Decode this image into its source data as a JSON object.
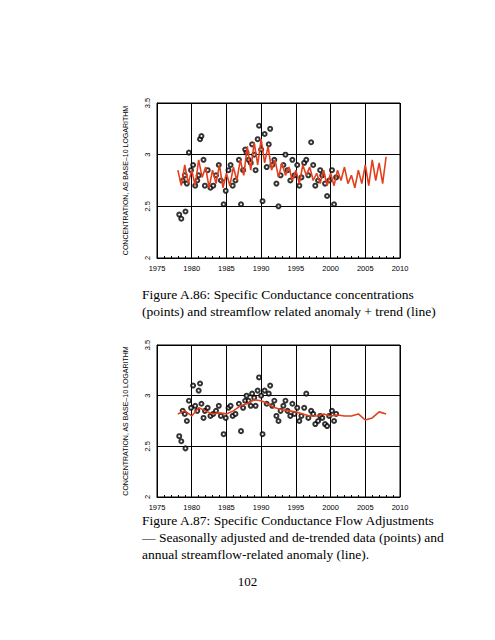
{
  "chart_data": [
    {
      "type": "scatter",
      "caption": "Figure A.86: Specific Conductance concentrations (points) and streamflow related anomaly + trend (line)",
      "y_label": "CONCENTRATION, AS BASE–10 LOGARITHM",
      "xlim": [
        1975,
        2010
      ],
      "xticks": [
        1975,
        1980,
        1985,
        1990,
        1995,
        2000,
        2005,
        2010
      ],
      "ylim": [
        2,
        3.5
      ],
      "yticks": [
        2,
        2.5,
        3,
        3.5
      ],
      "grid": true,
      "series": [
        {
          "type": "scatter",
          "marker": "circle-open",
          "color": "#000000",
          "x": [
            1978.2,
            1978.5,
            1978.7,
            1979.0,
            1979.1,
            1979.3,
            1979.6,
            1979.9,
            1980.2,
            1980.5,
            1980.8,
            1981.0,
            1981.2,
            1981.4,
            1981.7,
            1981.9,
            1982.3,
            1982.7,
            1983.1,
            1983.5,
            1983.9,
            1984.2,
            1984.6,
            1984.9,
            1985.3,
            1985.6,
            1985.9,
            1986.3,
            1986.8,
            1987.1,
            1987.4,
            1987.7,
            1987.9,
            1988.2,
            1988.5,
            1988.7,
            1989.0,
            1989.2,
            1989.5,
            1989.7,
            1990.0,
            1990.2,
            1990.5,
            1990.8,
            1991.1,
            1991.3,
            1991.6,
            1991.9,
            1992.2,
            1992.5,
            1992.8,
            1993.2,
            1993.5,
            1993.8,
            1994.2,
            1994.5,
            1994.8,
            1995.2,
            1995.5,
            1995.8,
            1996.2,
            1996.5,
            1996.8,
            1997.2,
            1997.5,
            1997.8,
            1998.2,
            1998.5,
            1998.8,
            1999.2,
            1999.5,
            1999.8,
            2000.2,
            2000.5,
            2000.8
          ],
          "values": [
            2.42,
            2.38,
            2.75,
            2.8,
            2.45,
            2.72,
            3.02,
            2.85,
            2.9,
            2.7,
            2.75,
            2.8,
            3.15,
            3.18,
            2.95,
            2.7,
            2.85,
            2.68,
            2.7,
            2.8,
            2.9,
            2.75,
            2.52,
            2.65,
            2.85,
            2.9,
            2.7,
            2.75,
            2.95,
            2.52,
            2.85,
            3.05,
            3.02,
            2.95,
            2.92,
            3.1,
            3.0,
            2.85,
            3.15,
            3.28,
            3.05,
            2.55,
            3.2,
            2.88,
            3.1,
            3.25,
            2.9,
            2.95,
            2.72,
            2.5,
            2.8,
            2.9,
            3.0,
            2.85,
            2.75,
            2.95,
            2.8,
            2.9,
            2.7,
            2.78,
            2.92,
            2.95,
            2.8,
            3.12,
            2.9,
            2.7,
            2.75,
            2.85,
            2.8,
            2.72,
            2.6,
            2.75,
            2.85,
            2.52,
            2.78
          ]
        },
        {
          "type": "line",
          "line_style": "solid",
          "color": "#e2401c",
          "x": [
            1978.0,
            1978.5,
            1979.0,
            1979.5,
            1980.0,
            1980.5,
            1981.0,
            1981.5,
            1982.0,
            1982.5,
            1983.0,
            1983.5,
            1984.0,
            1984.5,
            1985.0,
            1985.5,
            1986.0,
            1986.5,
            1987.0,
            1987.5,
            1988.0,
            1988.5,
            1989.0,
            1989.5,
            1990.0,
            1990.5,
            1991.0,
            1991.5,
            1992.0,
            1992.5,
            1993.0,
            1993.5,
            1994.0,
            1994.5,
            1995.0,
            1995.5,
            1996.0,
            1996.5,
            1997.0,
            1997.5,
            1998.0,
            1998.5,
            1999.0,
            1999.5,
            2000.0,
            2000.5,
            2001.0,
            2001.5,
            2002.0,
            2002.5,
            2003.0,
            2003.5,
            2004.0,
            2004.5,
            2005.0,
            2005.5,
            2006.0,
            2006.5,
            2007.0,
            2007.5,
            2008.0
          ],
          "values": [
            2.85,
            2.7,
            2.9,
            2.72,
            2.85,
            2.7,
            2.95,
            2.78,
            2.88,
            2.68,
            2.85,
            2.72,
            2.9,
            2.68,
            2.82,
            2.7,
            2.88,
            2.75,
            2.95,
            2.8,
            3.08,
            2.85,
            3.12,
            2.9,
            3.15,
            2.92,
            3.08,
            2.85,
            2.95,
            2.78,
            2.92,
            2.8,
            2.88,
            2.75,
            2.85,
            2.72,
            2.9,
            2.8,
            2.88,
            2.75,
            2.82,
            2.72,
            2.85,
            2.7,
            2.82,
            2.7,
            2.85,
            2.75,
            2.88,
            2.72,
            2.8,
            2.68,
            2.85,
            2.72,
            2.9,
            2.7,
            2.95,
            2.75,
            2.92,
            2.72,
            2.98
          ]
        }
      ]
    },
    {
      "type": "scatter",
      "caption": "Figure A.87: Specific Conductance Flow Adjustments — Seasonally adjusted and de-trended data (points) and annual streamflow-related anomaly (line).",
      "y_label": "CONCENTRATION, AS BASE–10 LOGARITHM",
      "xlim": [
        1975,
        2010
      ],
      "xticks": [
        1975,
        1980,
        1985,
        1990,
        1995,
        2000,
        2005,
        2010
      ],
      "ylim": [
        2,
        3.5
      ],
      "yticks": [
        2,
        2.5,
        3,
        3.5
      ],
      "grid": true,
      "series": [
        {
          "type": "scatter",
          "marker": "circle-open",
          "color": "#000000",
          "x": [
            1978.2,
            1978.5,
            1978.7,
            1979.0,
            1979.1,
            1979.3,
            1979.6,
            1979.9,
            1980.2,
            1980.5,
            1980.8,
            1981.0,
            1981.2,
            1981.4,
            1981.7,
            1981.9,
            1982.3,
            1982.7,
            1983.1,
            1983.5,
            1983.9,
            1984.2,
            1984.6,
            1984.9,
            1985.3,
            1985.6,
            1985.9,
            1986.3,
            1986.8,
            1987.1,
            1987.4,
            1987.7,
            1987.9,
            1988.2,
            1988.5,
            1988.7,
            1989.0,
            1989.2,
            1989.5,
            1989.7,
            1990.0,
            1990.2,
            1990.5,
            1990.8,
            1991.1,
            1991.3,
            1991.6,
            1991.9,
            1992.2,
            1992.5,
            1992.8,
            1993.2,
            1993.5,
            1993.8,
            1994.2,
            1994.5,
            1994.8,
            1995.2,
            1995.5,
            1995.8,
            1996.2,
            1996.5,
            1996.8,
            1997.2,
            1997.5,
            1997.8,
            1998.2,
            1998.5,
            1998.8,
            1999.2,
            1999.5,
            1999.8,
            2000.2,
            2000.5,
            2000.8
          ],
          "values": [
            2.6,
            2.55,
            2.85,
            2.82,
            2.48,
            2.75,
            2.95,
            2.88,
            3.1,
            2.9,
            2.85,
            3.05,
            3.12,
            2.92,
            2.78,
            2.85,
            2.88,
            2.8,
            2.82,
            2.85,
            2.9,
            2.8,
            2.62,
            2.78,
            2.88,
            2.9,
            2.8,
            2.82,
            2.92,
            2.65,
            2.88,
            2.95,
            3.0,
            2.95,
            2.9,
            3.02,
            2.98,
            2.9,
            3.05,
            3.18,
            3.0,
            2.62,
            3.05,
            2.92,
            3.02,
            3.1,
            2.9,
            2.95,
            2.8,
            2.75,
            2.85,
            2.9,
            2.95,
            2.85,
            2.8,
            2.92,
            2.82,
            2.88,
            2.75,
            2.8,
            2.88,
            3.02,
            2.78,
            2.85,
            2.82,
            2.72,
            2.75,
            2.8,
            2.78,
            2.72,
            2.7,
            2.8,
            2.85,
            2.75,
            2.82
          ]
        },
        {
          "type": "line",
          "line_style": "solid",
          "color": "#e2401c",
          "x": [
            1978,
            1979,
            1980,
            1981,
            1982,
            1983,
            1984,
            1985,
            1986,
            1987,
            1988,
            1989,
            1990,
            1991,
            1992,
            1993,
            1994,
            1995,
            1996,
            1997,
            1998,
            1999,
            2000,
            2001,
            2002,
            2003,
            2004,
            2005,
            2006,
            2007,
            2008
          ],
          "values": [
            2.82,
            2.85,
            2.8,
            2.88,
            2.85,
            2.82,
            2.83,
            2.82,
            2.85,
            2.9,
            2.92,
            2.96,
            2.95,
            2.92,
            2.88,
            2.86,
            2.85,
            2.84,
            2.82,
            2.8,
            2.8,
            2.82,
            2.8,
            2.81,
            2.8,
            2.8,
            2.82,
            2.76,
            2.78,
            2.84,
            2.82
          ]
        }
      ]
    }
  ],
  "page_number": "102"
}
